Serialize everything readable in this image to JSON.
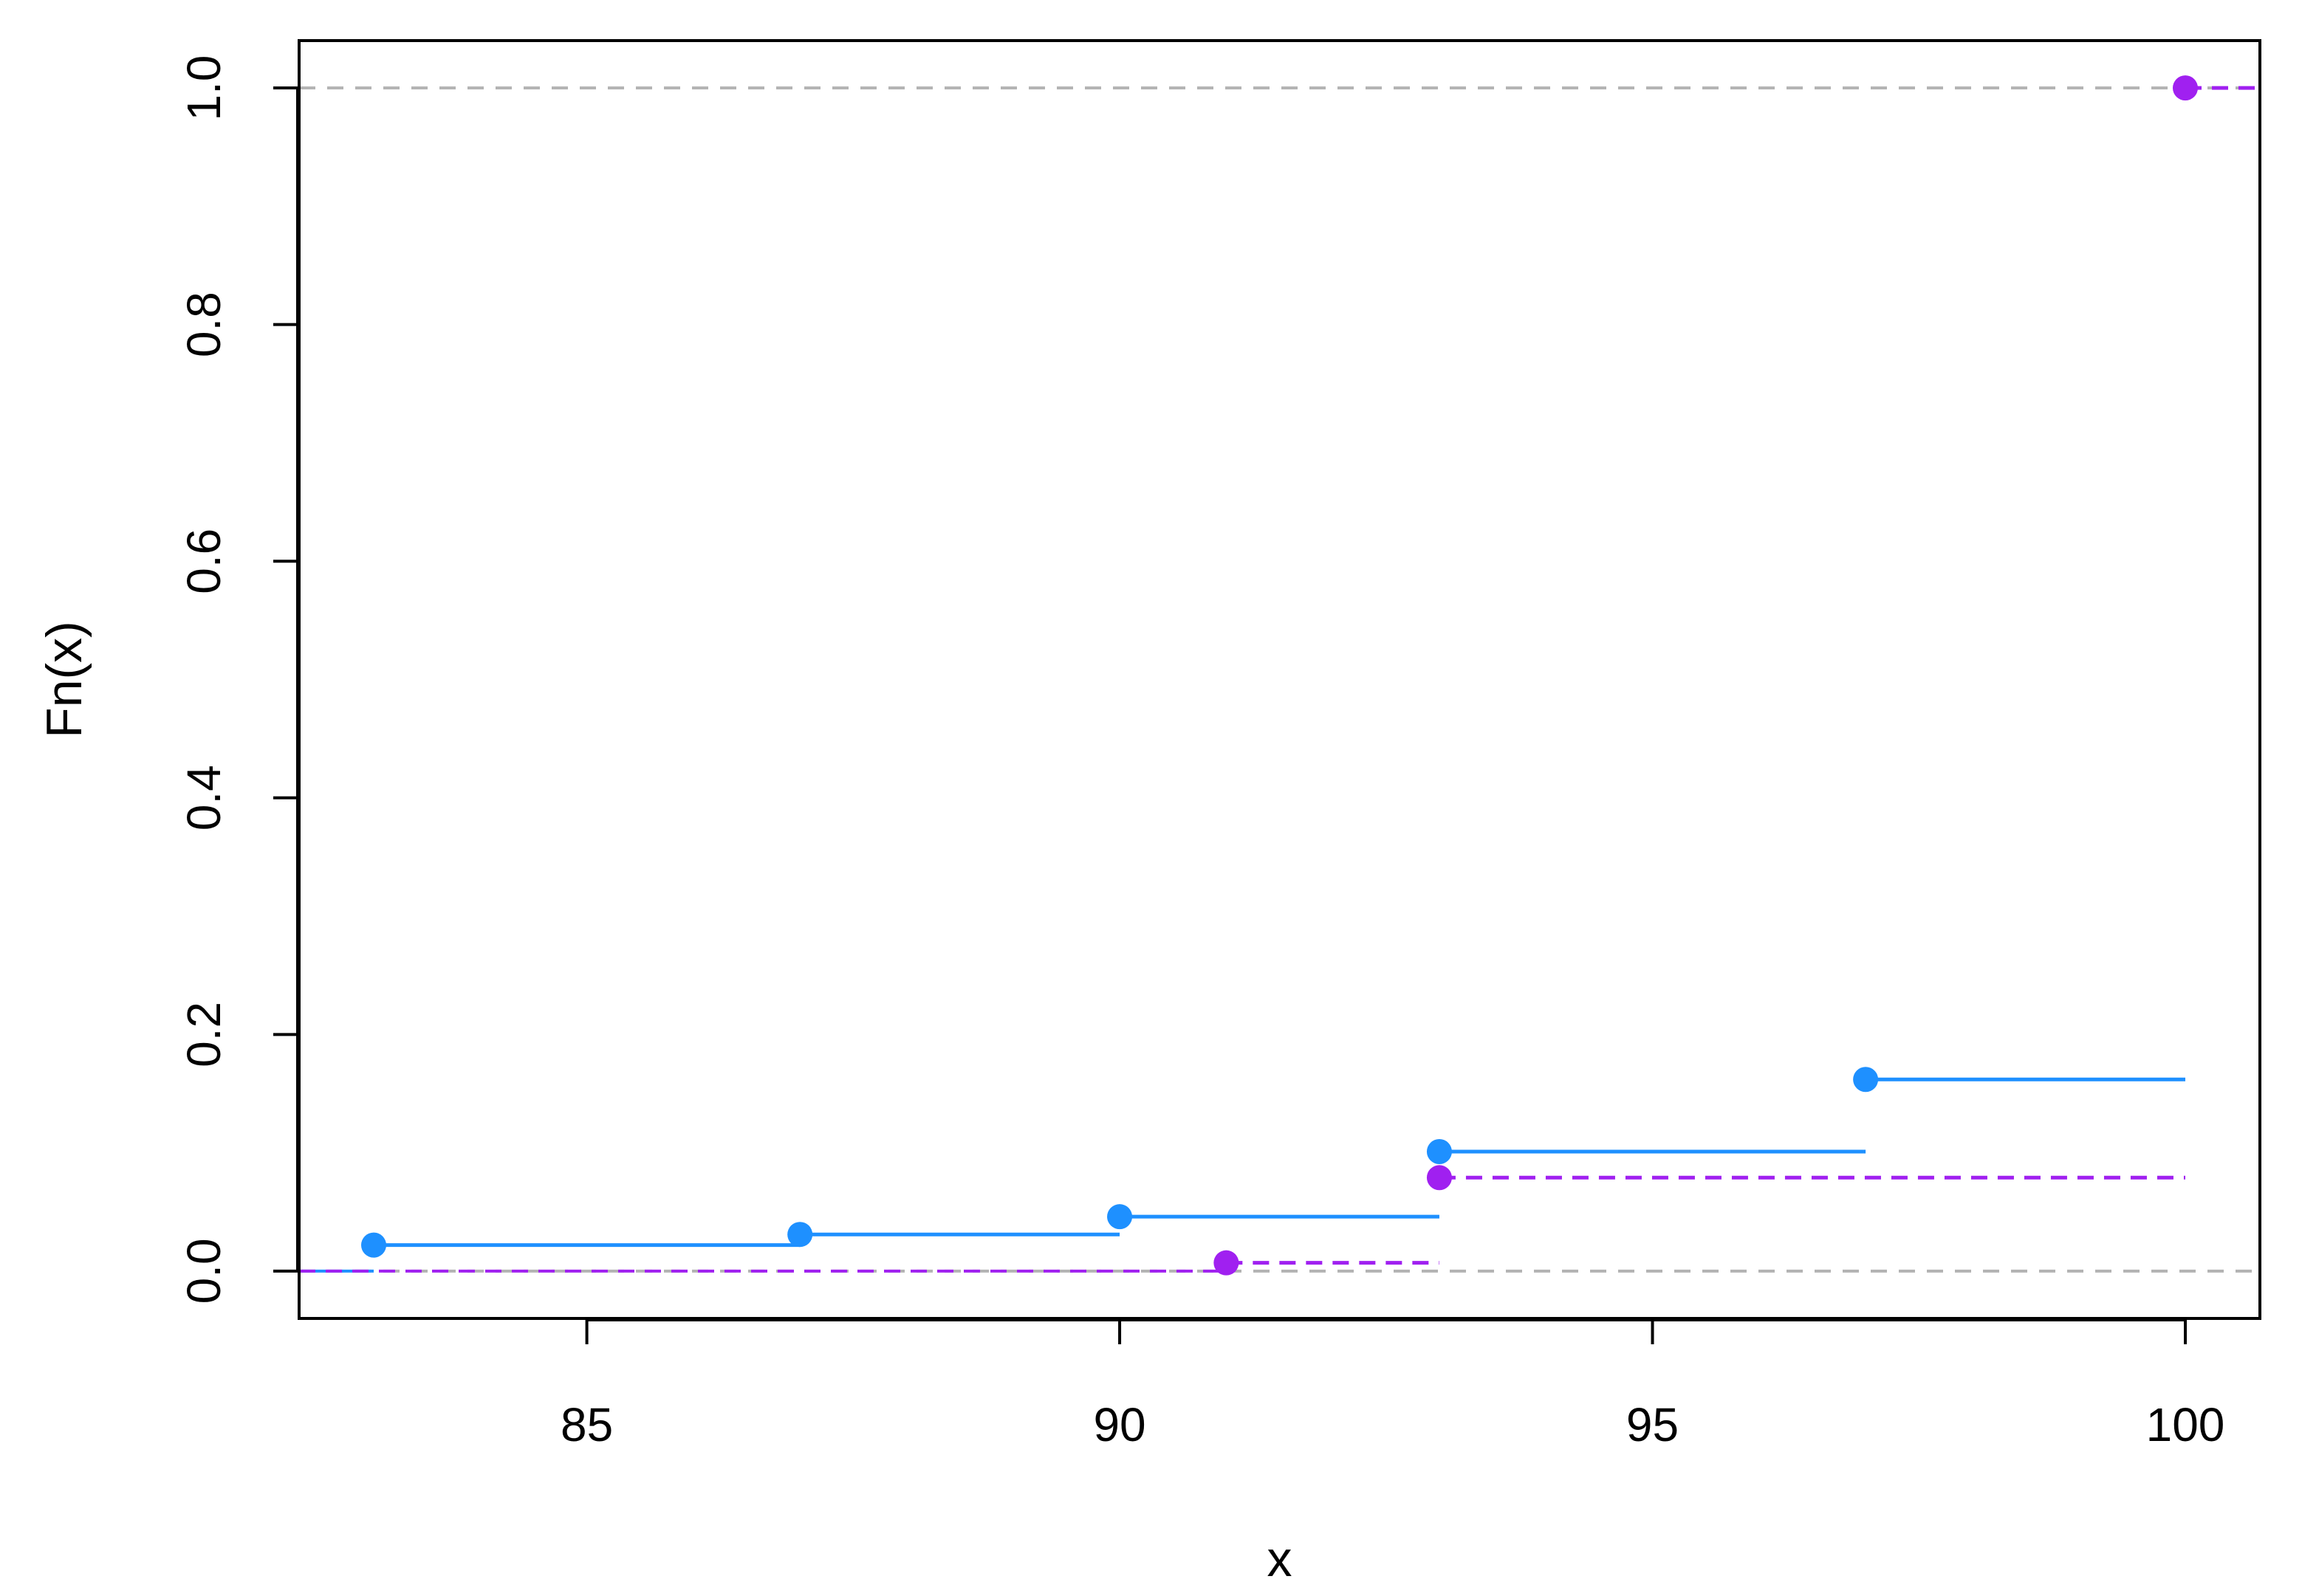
{
  "chart_data": {
    "type": "line",
    "title": "",
    "xlabel": "x",
    "ylabel": "Fn(x)",
    "xlim": [
      82.3,
      100.7
    ],
    "ylim": [
      -0.04,
      1.04
    ],
    "xticks": [
      85,
      90,
      95,
      100
    ],
    "xtick_labels": [
      "85",
      "90",
      "95",
      "100"
    ],
    "yticks": [
      0.0,
      0.2,
      0.4,
      0.6,
      0.8,
      1.0
    ],
    "ytick_labels": [
      "0.0",
      "0.2",
      "0.4",
      "0.6",
      "0.8",
      "1.0"
    ],
    "reference_lines": [
      0.0,
      1.0
    ],
    "grid": false,
    "series": [
      {
        "color": "#1e90ff",
        "line_style": "solid",
        "points": [
          {
            "x": 83,
            "y": 0.022
          },
          {
            "x": 87,
            "y": 0.031
          },
          {
            "x": 90,
            "y": 0.046
          },
          {
            "x": 93,
            "y": 0.101
          },
          {
            "x": 97,
            "y": 0.162
          }
        ],
        "step_end_x": 100
      },
      {
        "color": "#a020f0",
        "line_style": "dashed",
        "points": [
          {
            "x": 91,
            "y": 0.007
          },
          {
            "x": 93,
            "y": 0.079
          },
          {
            "x": 100,
            "y": 1.0
          }
        ],
        "step_end_x": 100.7
      }
    ]
  }
}
